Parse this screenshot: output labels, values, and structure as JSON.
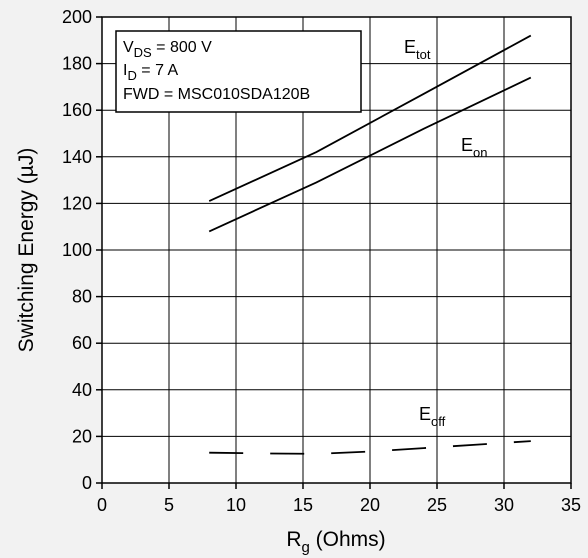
{
  "chart_data": {
    "type": "line",
    "xlabel_main": "R",
    "xlabel_sub": "g",
    "xlabel_rest": " (Ohms)",
    "ylabel": "Switching Energy (µJ)",
    "xlim": [
      0,
      35
    ],
    "ylim": [
      0,
      200
    ],
    "xticks": [
      0,
      5,
      10,
      15,
      20,
      25,
      30,
      35
    ],
    "yticks": [
      0,
      20,
      40,
      60,
      80,
      100,
      120,
      140,
      160,
      180,
      200
    ],
    "grid": true,
    "annotation": {
      "line1_main": "V",
      "line1_sub": "DS",
      "line1_rest": " = 800 V",
      "line2_main": "I",
      "line2_sub": "D",
      "line2_rest": " = 7 A",
      "line3": "FWD = MSC010SDA120B"
    },
    "series": [
      {
        "name": "E",
        "sub": "tot",
        "style": "solid",
        "x": [
          8,
          16,
          24,
          32
        ],
        "y": [
          121,
          142,
          167,
          192
        ]
      },
      {
        "name": "E",
        "sub": "on",
        "style": "solid",
        "x": [
          8,
          16,
          24,
          32
        ],
        "y": [
          108,
          129,
          152,
          174
        ]
      },
      {
        "name": "E",
        "sub": "off",
        "style": "dashed",
        "x": [
          8,
          12,
          16,
          20,
          24,
          28,
          32
        ],
        "y": [
          13,
          12.7,
          12.5,
          13.5,
          15,
          16.5,
          18
        ]
      }
    ]
  }
}
